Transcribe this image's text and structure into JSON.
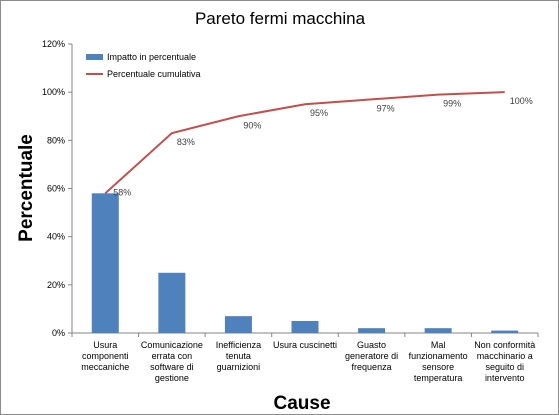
{
  "chart_data": {
    "type": "bar",
    "title": "Pareto fermi macchina",
    "xlabel": "Cause",
    "ylabel": "Percentuale",
    "ylim": [
      0,
      120
    ],
    "y_ticks": [
      "0%",
      "20%",
      "40%",
      "60%",
      "80%",
      "100%",
      "120%"
    ],
    "grid": false,
    "legend_position": "top-left",
    "categories": [
      [
        "Usura",
        "componenti",
        "meccaniche"
      ],
      [
        "Comunicazione",
        "errata con",
        "software di",
        "gestione"
      ],
      [
        "Inefficienza",
        "tenuta",
        "guarnizioni"
      ],
      [
        "Usura cuscinetti"
      ],
      [
        "Guasto",
        "generatore di",
        "frequenza"
      ],
      [
        "Mal",
        "funzionamento",
        "sensore",
        "temperatura"
      ],
      [
        "Non conformità",
        "macchinario a",
        "seguito di",
        "intervento"
      ]
    ],
    "series": [
      {
        "name": "Impatto in percentuale",
        "type": "bar",
        "color": "#4f81bd",
        "values": [
          58,
          25,
          7,
          5,
          2,
          2,
          1
        ]
      },
      {
        "name": "Percentuale cumulativa",
        "type": "line",
        "color": "#c0504d",
        "values": [
          58,
          83,
          90,
          95,
          97,
          99,
          100
        ],
        "data_labels": [
          "58%",
          "83%",
          "90%",
          "95%",
          "97%",
          "99%",
          "100%"
        ]
      }
    ]
  }
}
